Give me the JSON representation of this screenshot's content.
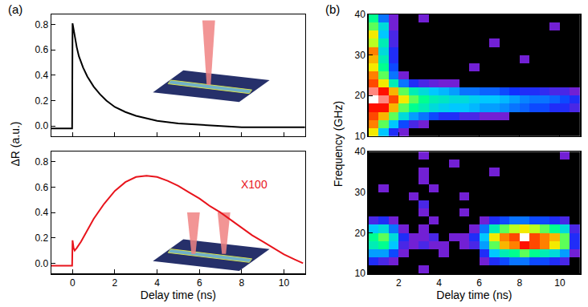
{
  "chart_data": [
    {
      "type": "line",
      "panel": "(a)",
      "ylabel": "ΔR (a.u.)",
      "color": "#000000",
      "grid": false,
      "tick_labels": "y",
      "x": [
        -1,
        -0.02,
        0,
        0.05,
        0.1,
        0.2,
        0.3,
        0.5,
        0.7,
        1,
        1.3,
        1.6,
        2,
        2.5,
        3,
        3.5,
        4,
        5,
        6,
        7,
        8,
        9,
        10,
        11
      ],
      "values": [
        -0.02,
        -0.02,
        0.81,
        0.76,
        0.7,
        0.62,
        0.55,
        0.46,
        0.39,
        0.31,
        0.25,
        0.2,
        0.15,
        0.11,
        0.08,
        0.06,
        0.04,
        0.02,
        0.01,
        0,
        -0.01,
        -0.01,
        -0.01,
        -0.01
      ],
      "xlim": [
        -1,
        11
      ],
      "xticks": [
        0,
        2,
        4,
        6,
        8,
        10
      ],
      "ylim": [
        -0.08,
        0.88
      ],
      "yticks": [
        {
          "value": 0,
          "label": "0.0"
        },
        {
          "value": 0.2,
          "label": "0.2"
        },
        {
          "value": 0.4,
          "label": "0.4"
        },
        {
          "value": 0.6,
          "label": "0.6"
        },
        {
          "value": 0.8,
          "label": "0.8"
        }
      ]
    },
    {
      "type": "line",
      "xlabel": "Delay time (ns)",
      "color": "#e8141c",
      "grid": false,
      "annotations": [
        {
          "text": "X100",
          "color": "#e8141c"
        }
      ],
      "x": [
        -1,
        -0.02,
        0,
        0.05,
        0.1,
        0.2,
        0.4,
        0.7,
        1,
        1.5,
        2,
        2.5,
        3,
        3.5,
        4,
        4.5,
        5,
        5.5,
        6,
        6.5,
        7,
        7.5,
        8,
        8.5,
        9,
        9.5,
        10,
        10.5,
        10.9
      ],
      "values": [
        -0.02,
        -0.02,
        0.18,
        0.12,
        0.1,
        0.12,
        0.17,
        0.26,
        0.35,
        0.47,
        0.57,
        0.64,
        0.68,
        0.69,
        0.68,
        0.65,
        0.61,
        0.56,
        0.51,
        0.45,
        0.4,
        0.34,
        0.28,
        0.22,
        0.17,
        0.12,
        0.07,
        0.03,
        0.0
      ],
      "xlim": [
        -1,
        11
      ],
      "xticks": [
        0,
        2,
        4,
        6,
        8,
        10
      ],
      "ylim": [
        -0.08,
        0.88
      ],
      "yticks": [
        {
          "value": 0,
          "label": "0.0"
        },
        {
          "value": 0.2,
          "label": "0.2"
        },
        {
          "value": 0.4,
          "label": "0.4"
        },
        {
          "value": 0.6,
          "label": "0.6"
        },
        {
          "value": 0.8,
          "label": "0.8"
        }
      ]
    },
    {
      "type": "heatmap",
      "panel": "(b)",
      "ylabel": "Frequency (GHz)",
      "grid": false,
      "tick_labels": "y",
      "xlim": [
        0.5,
        11
      ],
      "xticks": [
        2,
        4,
        6,
        8,
        10
      ],
      "ylim": [
        10,
        40
      ],
      "yticks": [
        10,
        20,
        30,
        40
      ],
      "zlim": [
        0,
        1
      ],
      "x": [
        0.75,
        1.25,
        1.75,
        2.25,
        2.75,
        3.25,
        3.75,
        4.25,
        4.75,
        5.25,
        5.75,
        6.25,
        6.75,
        7.25,
        7.75,
        8.25,
        8.75,
        9.25,
        9.75,
        10.25,
        10.75
      ],
      "y": [
        11,
        13,
        15,
        17,
        19,
        21,
        23,
        25,
        27,
        29,
        31,
        33,
        35,
        37,
        39
      ],
      "z": [
        [
          0.7,
          0.4,
          0.2,
          0.1,
          0,
          0,
          0,
          0,
          0,
          0,
          0,
          0,
          0,
          0,
          0,
          0,
          0,
          0,
          0,
          0,
          0
        ],
        [
          0.8,
          0.6,
          0.4,
          0.25,
          0.15,
          0.1,
          0,
          0,
          0,
          0,
          0,
          0,
          0,
          0,
          0,
          0,
          0,
          0,
          0,
          0,
          0
        ],
        [
          0.85,
          0.75,
          0.6,
          0.45,
          0.35,
          0.3,
          0.25,
          0.2,
          0.2,
          0.15,
          0.15,
          0.1,
          0.1,
          0.1,
          0,
          0,
          0,
          0,
          0,
          0,
          0
        ],
        [
          0.9,
          0.9,
          0.75,
          0.6,
          0.55,
          0.5,
          0.45,
          0.42,
          0.4,
          0.4,
          0.38,
          0.35,
          0.35,
          0.33,
          0.3,
          0.28,
          0.25,
          0.25,
          0.2,
          0.2,
          0.15
        ],
        [
          1,
          0.95,
          0.85,
          0.7,
          0.6,
          0.55,
          0.5,
          0.48,
          0.45,
          0.45,
          0.42,
          0.4,
          0.4,
          0.38,
          0.35,
          0.32,
          0.3,
          0.3,
          0.28,
          0.25,
          0.2
        ],
        [
          0.95,
          0.9,
          0.75,
          0.6,
          0.5,
          0.45,
          0.4,
          0.38,
          0.35,
          0.3,
          0.3,
          0.28,
          0.28,
          0.25,
          0.22,
          0.2,
          0.2,
          0.18,
          0.15,
          0.15,
          0.1
        ],
        [
          0.85,
          0.7,
          0.5,
          0.3,
          0.2,
          0.15,
          0.12,
          0.1,
          0.1,
          0,
          0,
          0,
          0,
          0,
          0,
          0,
          0,
          0,
          0,
          0,
          0
        ],
        [
          0.8,
          0.6,
          0.3,
          0.1,
          0,
          0,
          0,
          0,
          0,
          0,
          0,
          0,
          0,
          0,
          0,
          0,
          0,
          0,
          0,
          0,
          0
        ],
        [
          0.7,
          0.55,
          0.25,
          0,
          0,
          0,
          0,
          0,
          0,
          0,
          0.1,
          0,
          0,
          0,
          0,
          0,
          0,
          0,
          0,
          0,
          0
        ],
        [
          0.75,
          0.5,
          0.2,
          0,
          0,
          0,
          0,
          0,
          0,
          0,
          0,
          0,
          0,
          0,
          0,
          0.1,
          0,
          0,
          0,
          0,
          0
        ],
        [
          0.8,
          0.45,
          0.2,
          0,
          0,
          0,
          0,
          0,
          0,
          0,
          0,
          0,
          0,
          0,
          0,
          0,
          0,
          0,
          0,
          0,
          0
        ],
        [
          0.65,
          0.5,
          0.15,
          0,
          0,
          0,
          0,
          0,
          0,
          0,
          0,
          0,
          0.1,
          0,
          0,
          0,
          0,
          0,
          0,
          0,
          0
        ],
        [
          0.7,
          0.4,
          0.15,
          0,
          0,
          0,
          0,
          0,
          0,
          0,
          0,
          0,
          0,
          0,
          0,
          0,
          0,
          0,
          0,
          0,
          0
        ],
        [
          0.6,
          0.45,
          0.1,
          0,
          0,
          0,
          0,
          0,
          0,
          0,
          0,
          0,
          0,
          0,
          0,
          0,
          0,
          0,
          0.1,
          0,
          0
        ],
        [
          0.55,
          0.3,
          0.1,
          0,
          0,
          0.1,
          0,
          0,
          0,
          0,
          0,
          0,
          0,
          0,
          0,
          0,
          0,
          0,
          0,
          0,
          0
        ]
      ]
    },
    {
      "type": "heatmap",
      "xlabel": "Delay time (ns)",
      "grid": false,
      "xlim": [
        0.5,
        11
      ],
      "xticks": [
        2,
        4,
        6,
        8,
        10
      ],
      "ylim": [
        10,
        40
      ],
      "yticks": [
        10,
        20,
        30,
        40
      ],
      "zlim": [
        0,
        1
      ],
      "x": [
        0.75,
        1.25,
        1.75,
        2.25,
        2.75,
        3.25,
        3.75,
        4.25,
        4.75,
        5.25,
        5.75,
        6.25,
        6.75,
        7.25,
        7.75,
        8.25,
        8.75,
        9.25,
        9.75,
        10.25,
        10.75
      ],
      "y": [
        11,
        13,
        15,
        17,
        19,
        21,
        23,
        25,
        27,
        29,
        31,
        33,
        35,
        37,
        39
      ],
      "z": [
        [
          0,
          0,
          0,
          0,
          0,
          0.1,
          0,
          0,
          0,
          0,
          0,
          0,
          0,
          0,
          0,
          0,
          0,
          0,
          0,
          0,
          0
        ],
        [
          0.2,
          0.15,
          0.1,
          0,
          0,
          0,
          0,
          0,
          0,
          0,
          0,
          0.1,
          0.2,
          0.25,
          0.3,
          0.3,
          0.25,
          0.25,
          0.2,
          0.15,
          0
        ],
        [
          0.35,
          0.35,
          0.25,
          0.1,
          0,
          0,
          0,
          0.1,
          0,
          0,
          0,
          0.2,
          0.4,
          0.5,
          0.55,
          0.6,
          0.55,
          0.5,
          0.45,
          0.35,
          0.1
        ],
        [
          0.5,
          0.55,
          0.4,
          0.15,
          0.1,
          0.15,
          0.1,
          0.1,
          0,
          0.1,
          0.15,
          0.35,
          0.6,
          0.75,
          0.8,
          0.9,
          0.85,
          0.8,
          0.7,
          0.6,
          0.2
        ],
        [
          0.55,
          0.6,
          0.45,
          0.2,
          0.1,
          0.1,
          0.15,
          0,
          0.1,
          0.1,
          0.2,
          0.4,
          0.7,
          0.8,
          0.85,
          1,
          0.85,
          0.8,
          0.75,
          0.6,
          0.2
        ],
        [
          0.4,
          0.45,
          0.3,
          0.1,
          0,
          0.1,
          0,
          0,
          0,
          0,
          0.1,
          0.3,
          0.5,
          0.6,
          0.65,
          0.7,
          0.65,
          0.6,
          0.55,
          0.45,
          0.15
        ],
        [
          0.15,
          0.2,
          0.1,
          0,
          0,
          0,
          0.1,
          0,
          0,
          0,
          0,
          0.1,
          0.2,
          0.25,
          0.3,
          0.3,
          0.25,
          0.25,
          0.2,
          0.15,
          0
        ],
        [
          0,
          0,
          0,
          0,
          0,
          0.1,
          0,
          0,
          0,
          0.1,
          0,
          0,
          0,
          0,
          0,
          0,
          0,
          0,
          0,
          0,
          0
        ],
        [
          0,
          0,
          0,
          0,
          0,
          0.15,
          0,
          0,
          0,
          0,
          0,
          0,
          0,
          0,
          0,
          0,
          0,
          0,
          0,
          0,
          0
        ],
        [
          0,
          0,
          0,
          0,
          0.1,
          0,
          0,
          0,
          0,
          0.1,
          0,
          0,
          0,
          0,
          0,
          0,
          0,
          0,
          0,
          0,
          0
        ],
        [
          0,
          0.1,
          0,
          0,
          0,
          0,
          0.1,
          0,
          0,
          0,
          0,
          0,
          0,
          0,
          0,
          0,
          0,
          0,
          0,
          0,
          0
        ],
        [
          0,
          0,
          0,
          0,
          0,
          0.1,
          0,
          0,
          0,
          0,
          0,
          0,
          0,
          0,
          0,
          0,
          0,
          0,
          0,
          0,
          0
        ],
        [
          0,
          0,
          0,
          0,
          0,
          0.1,
          0,
          0,
          0,
          0,
          0,
          0,
          0.1,
          0,
          0,
          0,
          0,
          0,
          0,
          0,
          0
        ],
        [
          0,
          0,
          0,
          0,
          0,
          0,
          0,
          0,
          0.1,
          0,
          0,
          0,
          0,
          0,
          0,
          0,
          0,
          0,
          0,
          0,
          0
        ],
        [
          0,
          0,
          0,
          0,
          0,
          0.1,
          0,
          0,
          0,
          0,
          0,
          0,
          0,
          0,
          0,
          0,
          0,
          0,
          0,
          0.1,
          0
        ]
      ]
    }
  ]
}
